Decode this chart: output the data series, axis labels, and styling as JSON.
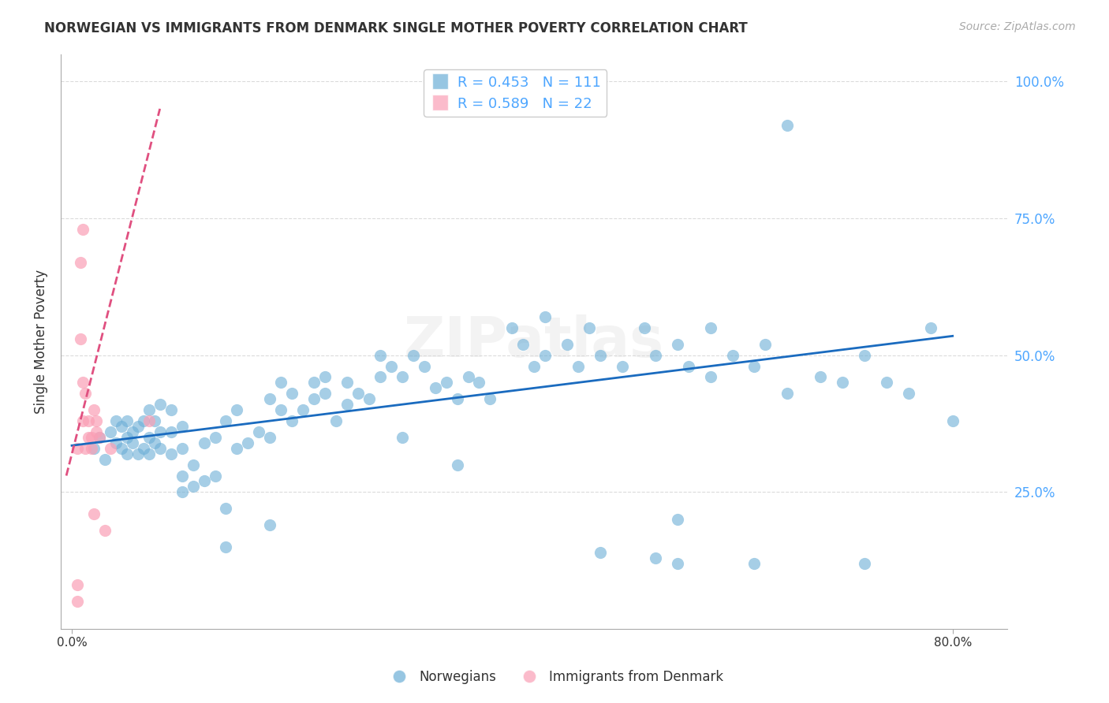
{
  "title": "NORWEGIAN VS IMMIGRANTS FROM DENMARK SINGLE MOTHER POVERTY CORRELATION CHART",
  "source": "Source: ZipAtlas.com",
  "xlabel_ticks": [
    "0.0%",
    "80.0%"
  ],
  "ylabel_label": "Single Mother Poverty",
  "right_yticks": [
    "100.0%",
    "75.0%",
    "50.0%",
    "25.0%"
  ],
  "legend_blue_r": "R = 0.453",
  "legend_blue_n": "N = 111",
  "legend_pink_r": "R = 0.589",
  "legend_pink_n": "N = 22",
  "blue_color": "#6baed6",
  "pink_color": "#fa9fb5",
  "trend_blue": "#1a6bbf",
  "trend_pink": "#e05080",
  "watermark": "ZIPatlas",
  "blue_points_x": [
    0.02,
    0.025,
    0.03,
    0.035,
    0.04,
    0.04,
    0.045,
    0.045,
    0.05,
    0.05,
    0.05,
    0.055,
    0.055,
    0.06,
    0.06,
    0.065,
    0.065,
    0.07,
    0.07,
    0.07,
    0.075,
    0.075,
    0.08,
    0.08,
    0.08,
    0.09,
    0.09,
    0.09,
    0.1,
    0.1,
    0.1,
    0.1,
    0.11,
    0.11,
    0.12,
    0.12,
    0.13,
    0.13,
    0.14,
    0.14,
    0.14,
    0.15,
    0.15,
    0.16,
    0.17,
    0.18,
    0.18,
    0.19,
    0.19,
    0.2,
    0.2,
    0.21,
    0.22,
    0.22,
    0.23,
    0.23,
    0.24,
    0.25,
    0.25,
    0.26,
    0.27,
    0.28,
    0.28,
    0.29,
    0.3,
    0.31,
    0.32,
    0.33,
    0.34,
    0.35,
    0.36,
    0.37,
    0.38,
    0.4,
    0.41,
    0.42,
    0.43,
    0.45,
    0.46,
    0.47,
    0.48,
    0.5,
    0.52,
    0.53,
    0.55,
    0.56,
    0.58,
    0.6,
    0.62,
    0.63,
    0.65,
    0.68,
    0.7,
    0.72,
    0.74,
    0.76,
    0.78,
    0.8,
    0.65,
    0.3,
    0.55,
    0.35,
    0.48,
    0.18,
    0.53,
    0.55,
    0.62,
    0.72,
    0.43,
    0.58
  ],
  "blue_points_y": [
    0.33,
    0.35,
    0.31,
    0.36,
    0.34,
    0.38,
    0.33,
    0.37,
    0.32,
    0.35,
    0.38,
    0.34,
    0.36,
    0.32,
    0.37,
    0.33,
    0.38,
    0.32,
    0.35,
    0.4,
    0.34,
    0.38,
    0.33,
    0.36,
    0.41,
    0.32,
    0.36,
    0.4,
    0.25,
    0.28,
    0.33,
    0.37,
    0.26,
    0.3,
    0.27,
    0.34,
    0.28,
    0.35,
    0.15,
    0.22,
    0.38,
    0.33,
    0.4,
    0.34,
    0.36,
    0.35,
    0.42,
    0.4,
    0.45,
    0.38,
    0.43,
    0.4,
    0.42,
    0.45,
    0.43,
    0.46,
    0.38,
    0.41,
    0.45,
    0.43,
    0.42,
    0.46,
    0.5,
    0.48,
    0.46,
    0.5,
    0.48,
    0.44,
    0.45,
    0.42,
    0.46,
    0.45,
    0.42,
    0.55,
    0.52,
    0.48,
    0.5,
    0.52,
    0.48,
    0.55,
    0.5,
    0.48,
    0.55,
    0.5,
    0.52,
    0.48,
    0.55,
    0.5,
    0.48,
    0.52,
    0.43,
    0.46,
    0.45,
    0.5,
    0.45,
    0.43,
    0.55,
    0.38,
    0.92,
    0.35,
    0.2,
    0.3,
    0.14,
    0.19,
    0.13,
    0.12,
    0.12,
    0.12,
    0.57,
    0.46
  ],
  "pink_points_x": [
    0.005,
    0.005,
    0.005,
    0.008,
    0.008,
    0.01,
    0.01,
    0.01,
    0.012,
    0.012,
    0.015,
    0.015,
    0.018,
    0.018,
    0.02,
    0.02,
    0.022,
    0.022,
    0.025,
    0.03,
    0.035,
    0.07
  ],
  "pink_points_y": [
    0.33,
    0.05,
    0.08,
    0.53,
    0.67,
    0.73,
    0.38,
    0.45,
    0.33,
    0.43,
    0.35,
    0.38,
    0.33,
    0.35,
    0.4,
    0.21,
    0.36,
    0.38,
    0.35,
    0.18,
    0.33,
    0.38
  ],
  "blue_trend_x": [
    0.0,
    0.8
  ],
  "blue_trend_y": [
    0.335,
    0.535
  ],
  "pink_trend_x": [
    -0.005,
    0.08
  ],
  "pink_trend_y": [
    0.28,
    0.95
  ],
  "xmin": -0.01,
  "xmax": 0.85,
  "ymin": 0.0,
  "ymax": 1.05
}
